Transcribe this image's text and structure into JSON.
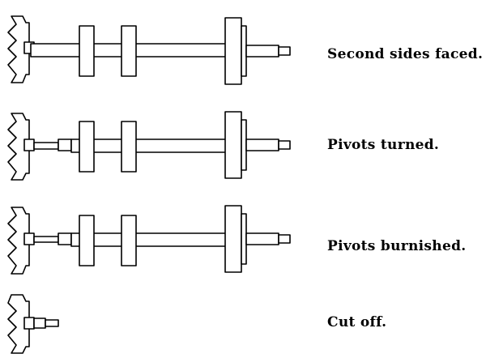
{
  "steps": [
    {
      "label": "Second sides faced.",
      "pivots": "none",
      "cut_off": false
    },
    {
      "label": "Pivots turned.",
      "pivots": "turned",
      "cut_off": false
    },
    {
      "label": "Pivots burnished.",
      "pivots": "burnished",
      "cut_off": false
    },
    {
      "label": "Cut off.",
      "pivots": "none",
      "cut_off": true
    }
  ]
}
